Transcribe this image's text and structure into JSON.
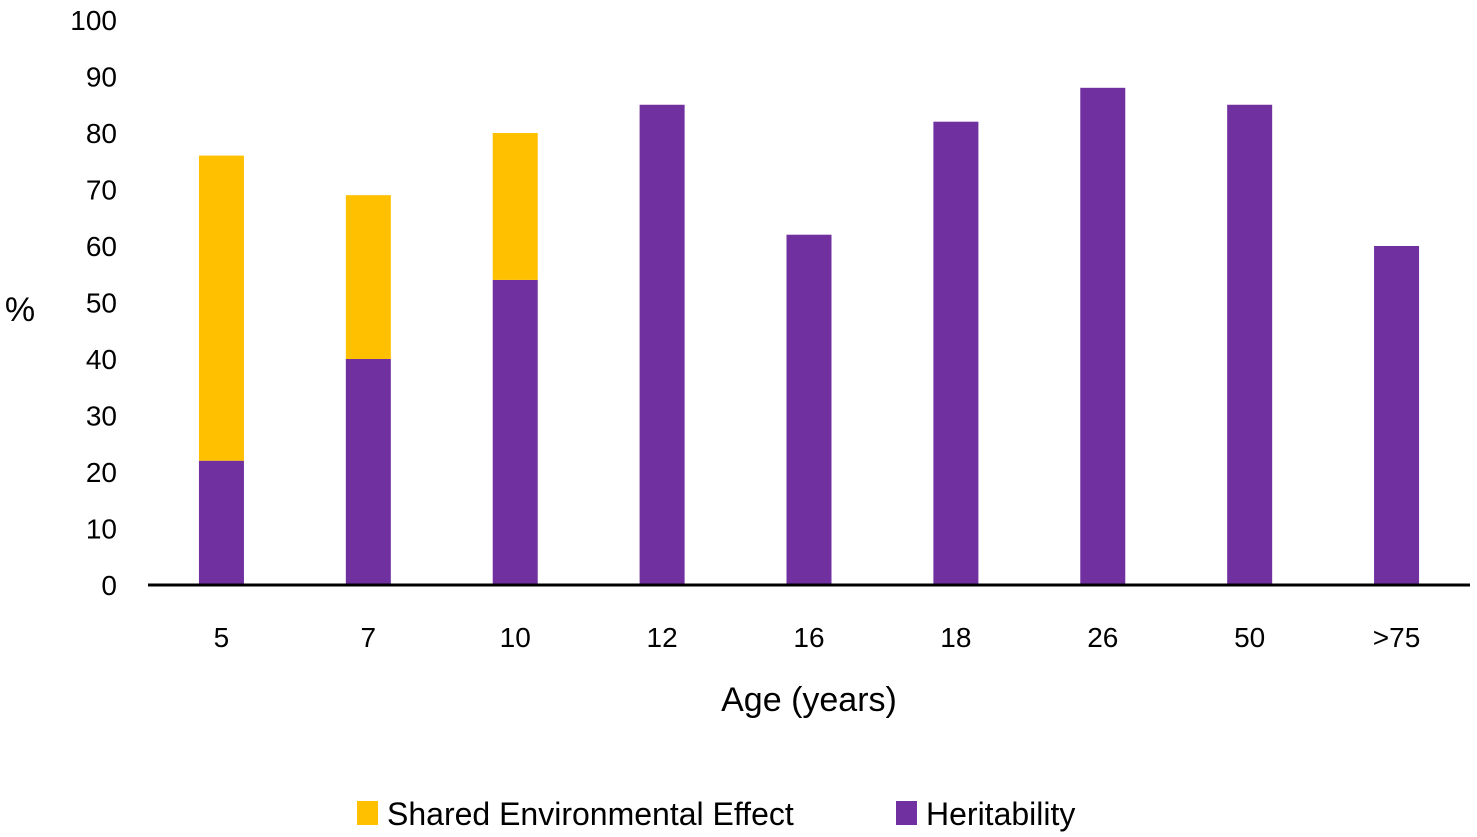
{
  "chart_data": {
    "type": "bar",
    "stacked": true,
    "title": "",
    "xlabel": "Age (years)",
    "ylabel": "%",
    "ylim": [
      0,
      100
    ],
    "yticks": [
      0,
      10,
      20,
      30,
      40,
      50,
      60,
      70,
      80,
      90,
      100
    ],
    "categories": [
      "5",
      "7",
      "10",
      "12",
      "16",
      "18",
      "26",
      "50",
      ">75"
    ],
    "series": [
      {
        "name": "Heritability",
        "color": "#7030A0",
        "values": [
          22,
          40,
          54,
          85,
          62,
          82,
          88,
          85,
          60
        ]
      },
      {
        "name": "Shared Environmental Effect",
        "color": "#FFC000",
        "values": [
          54,
          29,
          26,
          0,
          0,
          0,
          0,
          0,
          0
        ]
      }
    ],
    "legend": {
      "position": "bottom",
      "order": [
        "Shared Environmental Effect",
        "Heritability"
      ]
    },
    "grid": false
  }
}
